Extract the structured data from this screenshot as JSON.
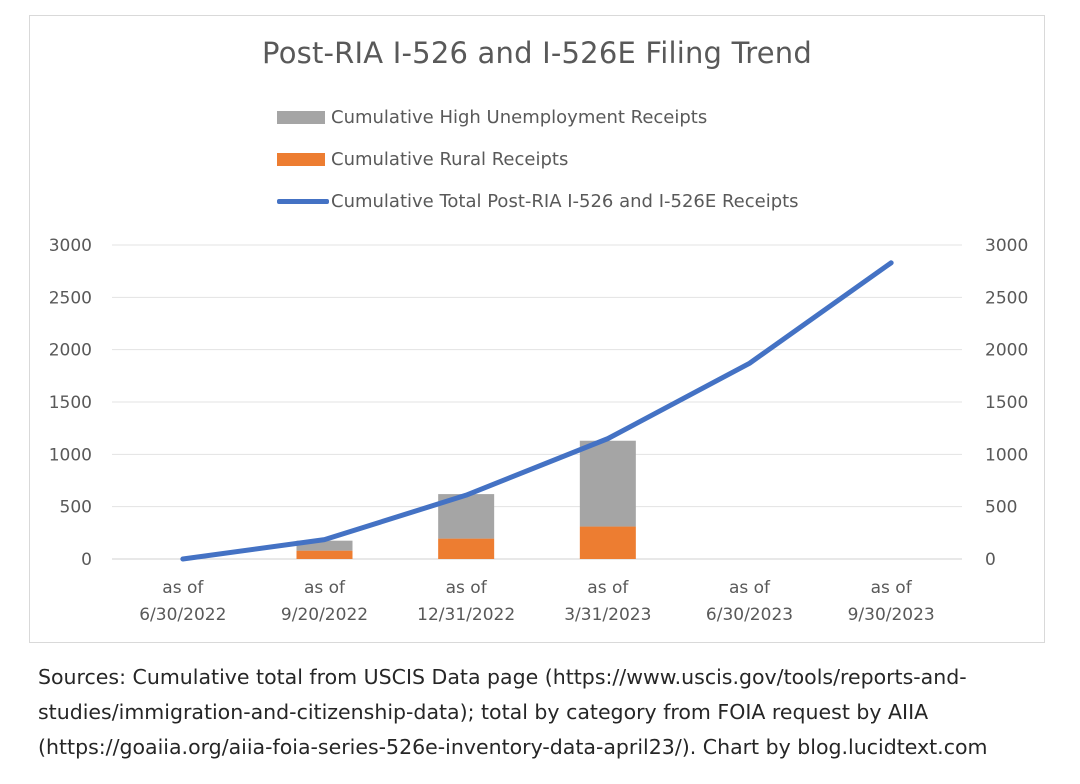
{
  "chart_data": {
    "type": "bar+line",
    "title": "Post-RIA I-526 and I-526E Filing Trend",
    "categories": [
      [
        "as of",
        "6/30/2022"
      ],
      [
        "as of",
        "9/20/2022"
      ],
      [
        "as of",
        "12/31/2022"
      ],
      [
        "as of",
        "3/31/2023"
      ],
      [
        "as of",
        "6/30/2023"
      ],
      [
        "as of",
        "9/30/2023"
      ]
    ],
    "ylim": [
      0,
      3000
    ],
    "yticks": [
      "0",
      "500",
      "1000",
      "1500",
      "2000",
      "2500",
      "3000"
    ],
    "grid": true,
    "legend_position": "top",
    "series": [
      {
        "name": "Cumulative Rural Receipts",
        "kind": "stacked-bar",
        "color": "#ed7d31",
        "values": [
          0,
          80,
          195,
          310,
          null,
          null
        ]
      },
      {
        "name": "Cumulative High Unemployment Receipts",
        "kind": "stacked-bar",
        "color": "#a5a5a5",
        "values": [
          0,
          95,
          425,
          820,
          null,
          null
        ]
      },
      {
        "name": "Cumulative Total Post-RIA I-526 and I-526E Receipts",
        "kind": "line",
        "color": "#4472c4",
        "values": [
          0,
          185,
          610,
          1150,
          1870,
          2830
        ]
      }
    ],
    "legend_order": [
      "Cumulative High Unemployment Receipts",
      "Cumulative Rural Receipts",
      "Cumulative Total Post-RIA I-526 and I-526E Receipts"
    ]
  },
  "sources": {
    "lines": [
      "Sources: Cumulative total from USCIS Data page (https://www.uscis.gov/tools/reports-and-",
      "studies/immigration-and-citizenship-data); total by category from FOIA request by AIIA",
      "(https://goaiia.org/aiia-foia-series-526e-inventory-data-april23/). Chart by blog.lucidtext.com"
    ]
  }
}
